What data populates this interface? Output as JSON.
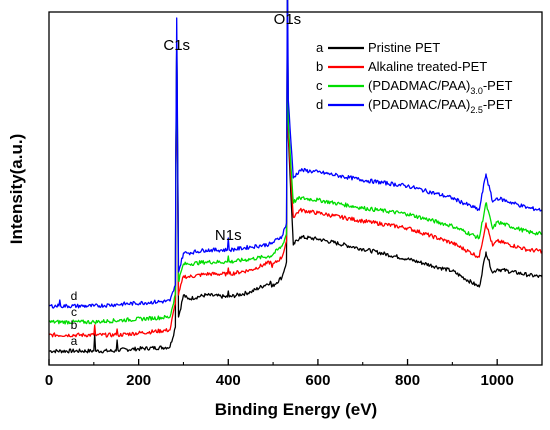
{
  "chart_data": {
    "type": "line",
    "title": "",
    "xlabel": "Binding Energy (eV)",
    "ylabel": "Intensity(a.u.)",
    "xlim": [
      0,
      1100
    ],
    "xticks": [
      0,
      200,
      400,
      600,
      800,
      1000
    ],
    "y_tick_labels": "none",
    "grid": false,
    "legend_position": "top-right",
    "annotations": [
      {
        "text": "C1s",
        "x": 285
      },
      {
        "text": "N1s",
        "x": 400
      },
      {
        "text": "O1s",
        "x": 532
      }
    ],
    "series": [
      {
        "letter": "a",
        "name": "Pristine PET",
        "color": "#000000",
        "offset": 0,
        "x": [
          0,
          100,
          102,
          104,
          150,
          152,
          154,
          270,
          282,
          283,
          285,
          287,
          289,
          300,
          310,
          350,
          398,
          400,
          402,
          450,
          495,
          497,
          520,
          530,
          532,
          534,
          545,
          560,
          600,
          700,
          800,
          900,
          960,
          975,
          990,
          1000,
          1070,
          1100
        ],
        "y": [
          6,
          6,
          23,
          6,
          6,
          17,
          7,
          10,
          30,
          185,
          312,
          180,
          40,
          62,
          58,
          62,
          60,
          66,
          60,
          65,
          75,
          70,
          80,
          95,
          365,
          220,
          112,
          120,
          118,
          108,
          98,
          86,
          70,
          105,
          84,
          88,
          82,
          80
        ]
      },
      {
        "letter": "b",
        "name": "Alkaline treated-PET",
        "color": "#ff0000",
        "offset": 16,
        "x": [
          0,
          100,
          102,
          104,
          150,
          152,
          154,
          270,
          282,
          283,
          285,
          287,
          289,
          300,
          310,
          350,
          398,
          400,
          402,
          450,
          495,
          497,
          520,
          530,
          532,
          534,
          545,
          560,
          600,
          700,
          800,
          900,
          960,
          975,
          990,
          1000,
          1070,
          1100
        ],
        "y": [
          6,
          6,
          16,
          6,
          6,
          12,
          6,
          11,
          38,
          170,
          296,
          180,
          46,
          65,
          64,
          67,
          67,
          73,
          67,
          71,
          79,
          75,
          84,
          100,
          352,
          206,
          124,
          131,
          128,
          120,
          113,
          98,
          84,
          118,
          95,
          100,
          91,
          90
        ]
      },
      {
        "letter": "c",
        "name": "(PDADMAC/PAA)3.0-PET",
        "color": "#00dd00",
        "offset": 31,
        "x": [
          0,
          100,
          270,
          282,
          283,
          285,
          287,
          289,
          300,
          310,
          350,
          398,
          400,
          402,
          450,
          495,
          520,
          530,
          532,
          534,
          545,
          560,
          600,
          700,
          800,
          900,
          960,
          975,
          990,
          1000,
          1070,
          1100
        ],
        "y": [
          4,
          4,
          9,
          32,
          160,
          286,
          178,
          45,
          62,
          62,
          64,
          64,
          70,
          64,
          67,
          70,
          80,
          92,
          340,
          203,
          124,
          128,
          126,
          118,
          112,
          100,
          88,
          123,
          97,
          104,
          94,
          92
        ]
      },
      {
        "letter": "d",
        "name": "(PDADMAC/PAA)2.5-PET",
        "color": "#0000ff",
        "offset": 47,
        "x": [
          0,
          22,
          24,
          26,
          100,
          270,
          282,
          283,
          285,
          287,
          289,
          300,
          310,
          350,
          398,
          400,
          402,
          450,
          495,
          520,
          530,
          532,
          534,
          545,
          560,
          600,
          700,
          800,
          900,
          960,
          975,
          990,
          1000,
          1070,
          1100
        ],
        "y": [
          4,
          4,
          10,
          4,
          4,
          9,
          25,
          150,
          292,
          166,
          38,
          57,
          57,
          60,
          60,
          72,
          60,
          63,
          66,
          74,
          87,
          350,
          210,
          132,
          140,
          138,
          130,
          124,
          112,
          100,
          136,
          108,
          112,
          102,
          100
        ]
      }
    ]
  }
}
